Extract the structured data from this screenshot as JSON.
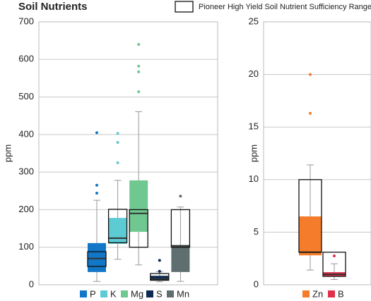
{
  "chart_data": [
    {
      "type": "box",
      "title": "Soil Nutrients",
      "range_legend": "Pioneer High Yield Soil Nutrient Sufficiency Range",
      "ylabel": "ppm",
      "ylim": [
        0,
        700
      ],
      "yticks": [
        0,
        100,
        200,
        300,
        400,
        500,
        600,
        700
      ],
      "grid": true,
      "boxes": [
        {
          "name": "P",
          "color": "#1177c6",
          "min": 9,
          "q1": 34,
          "median": 70,
          "q3": 111,
          "max": 225,
          "outliers": [
            244,
            265,
            405
          ],
          "range": [
            49,
            88
          ]
        },
        {
          "name": "K",
          "color": "#5ccbd3",
          "min": 68,
          "q1": 109,
          "median": 124,
          "q3": 178,
          "max": 278,
          "outliers": [
            325,
            379,
            403
          ],
          "range": [
            112,
            201
          ]
        },
        {
          "name": "Mg",
          "color": "#6fc890",
          "min": 53,
          "q1": 141,
          "median": 190,
          "q3": 278,
          "max": 461,
          "outliers": [
            514,
            567,
            582,
            640
          ],
          "range": [
            100,
            200
          ]
        },
        {
          "name": "S",
          "color": "#0d2a52",
          "min": 8,
          "q1": 12,
          "median": 16,
          "q3": 24,
          "max": 35,
          "outliers": [
            36,
            65
          ],
          "range": [
            12,
            30
          ]
        },
        {
          "name": "Mn",
          "color": "#5f6e6e",
          "min": 9,
          "q1": 34,
          "median": 104,
          "q3": 105,
          "max": 207,
          "outliers": [
            236
          ],
          "range": [
            100,
            200
          ]
        }
      ]
    },
    {
      "type": "box",
      "ylabel": "ppm",
      "ylim": [
        0,
        25
      ],
      "yticks": [
        0,
        5,
        10,
        15,
        20,
        25
      ],
      "grid": true,
      "boxes": [
        {
          "name": "Zn",
          "color": "#f47c2a",
          "min": 1.4,
          "q1": 2.8,
          "median": 3.1,
          "q3": 6.5,
          "max": 11.4,
          "outliers": [
            16.3,
            20
          ],
          "range": [
            3.1,
            10
          ]
        },
        {
          "name": "B",
          "color": "#e0304a",
          "min": 0.5,
          "q1": 0.8,
          "median": 1.0,
          "q3": 1.2,
          "max": 2.0,
          "outliers": [
            2.75
          ],
          "range": [
            0.8,
            3.1
          ]
        }
      ]
    }
  ]
}
